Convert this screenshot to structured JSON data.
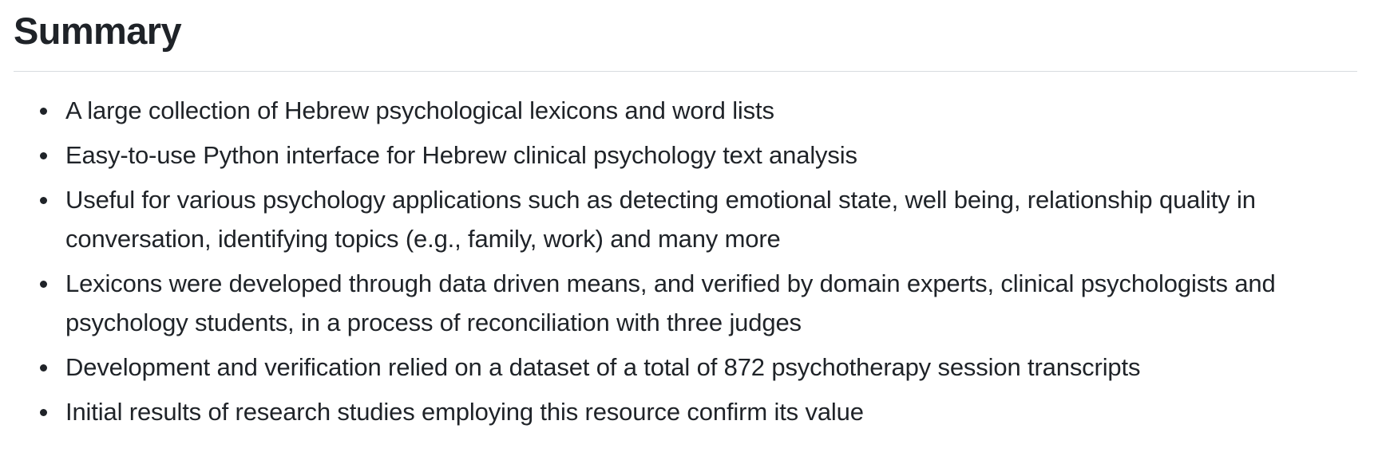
{
  "summary": {
    "title": "Summary",
    "items": [
      {
        "text": "A large collection of Hebrew psychological lexicons and word lists"
      },
      {
        "text": "Easy-to-use Python interface for Hebrew clinical psychology text analysis"
      },
      {
        "text": "Useful for various psychology applications such as detecting emotional state, well being, relationship quality in conversation, identifying topics (e.g., family, work) and many more"
      },
      {
        "text": "Lexicons were developed through data driven means, and verified by domain experts, clinical psychologists and psychology students, in a process of reconciliation with three judges"
      },
      {
        "text": "Development and verification relied on a dataset of a total of 872 psychotherapy session transcripts"
      },
      {
        "text": "Initial results of research studies employing this resource confirm its value"
      }
    ]
  },
  "colors": {
    "text": "#1f2328",
    "rule": "#d7dbe0",
    "background": "#ffffff"
  }
}
